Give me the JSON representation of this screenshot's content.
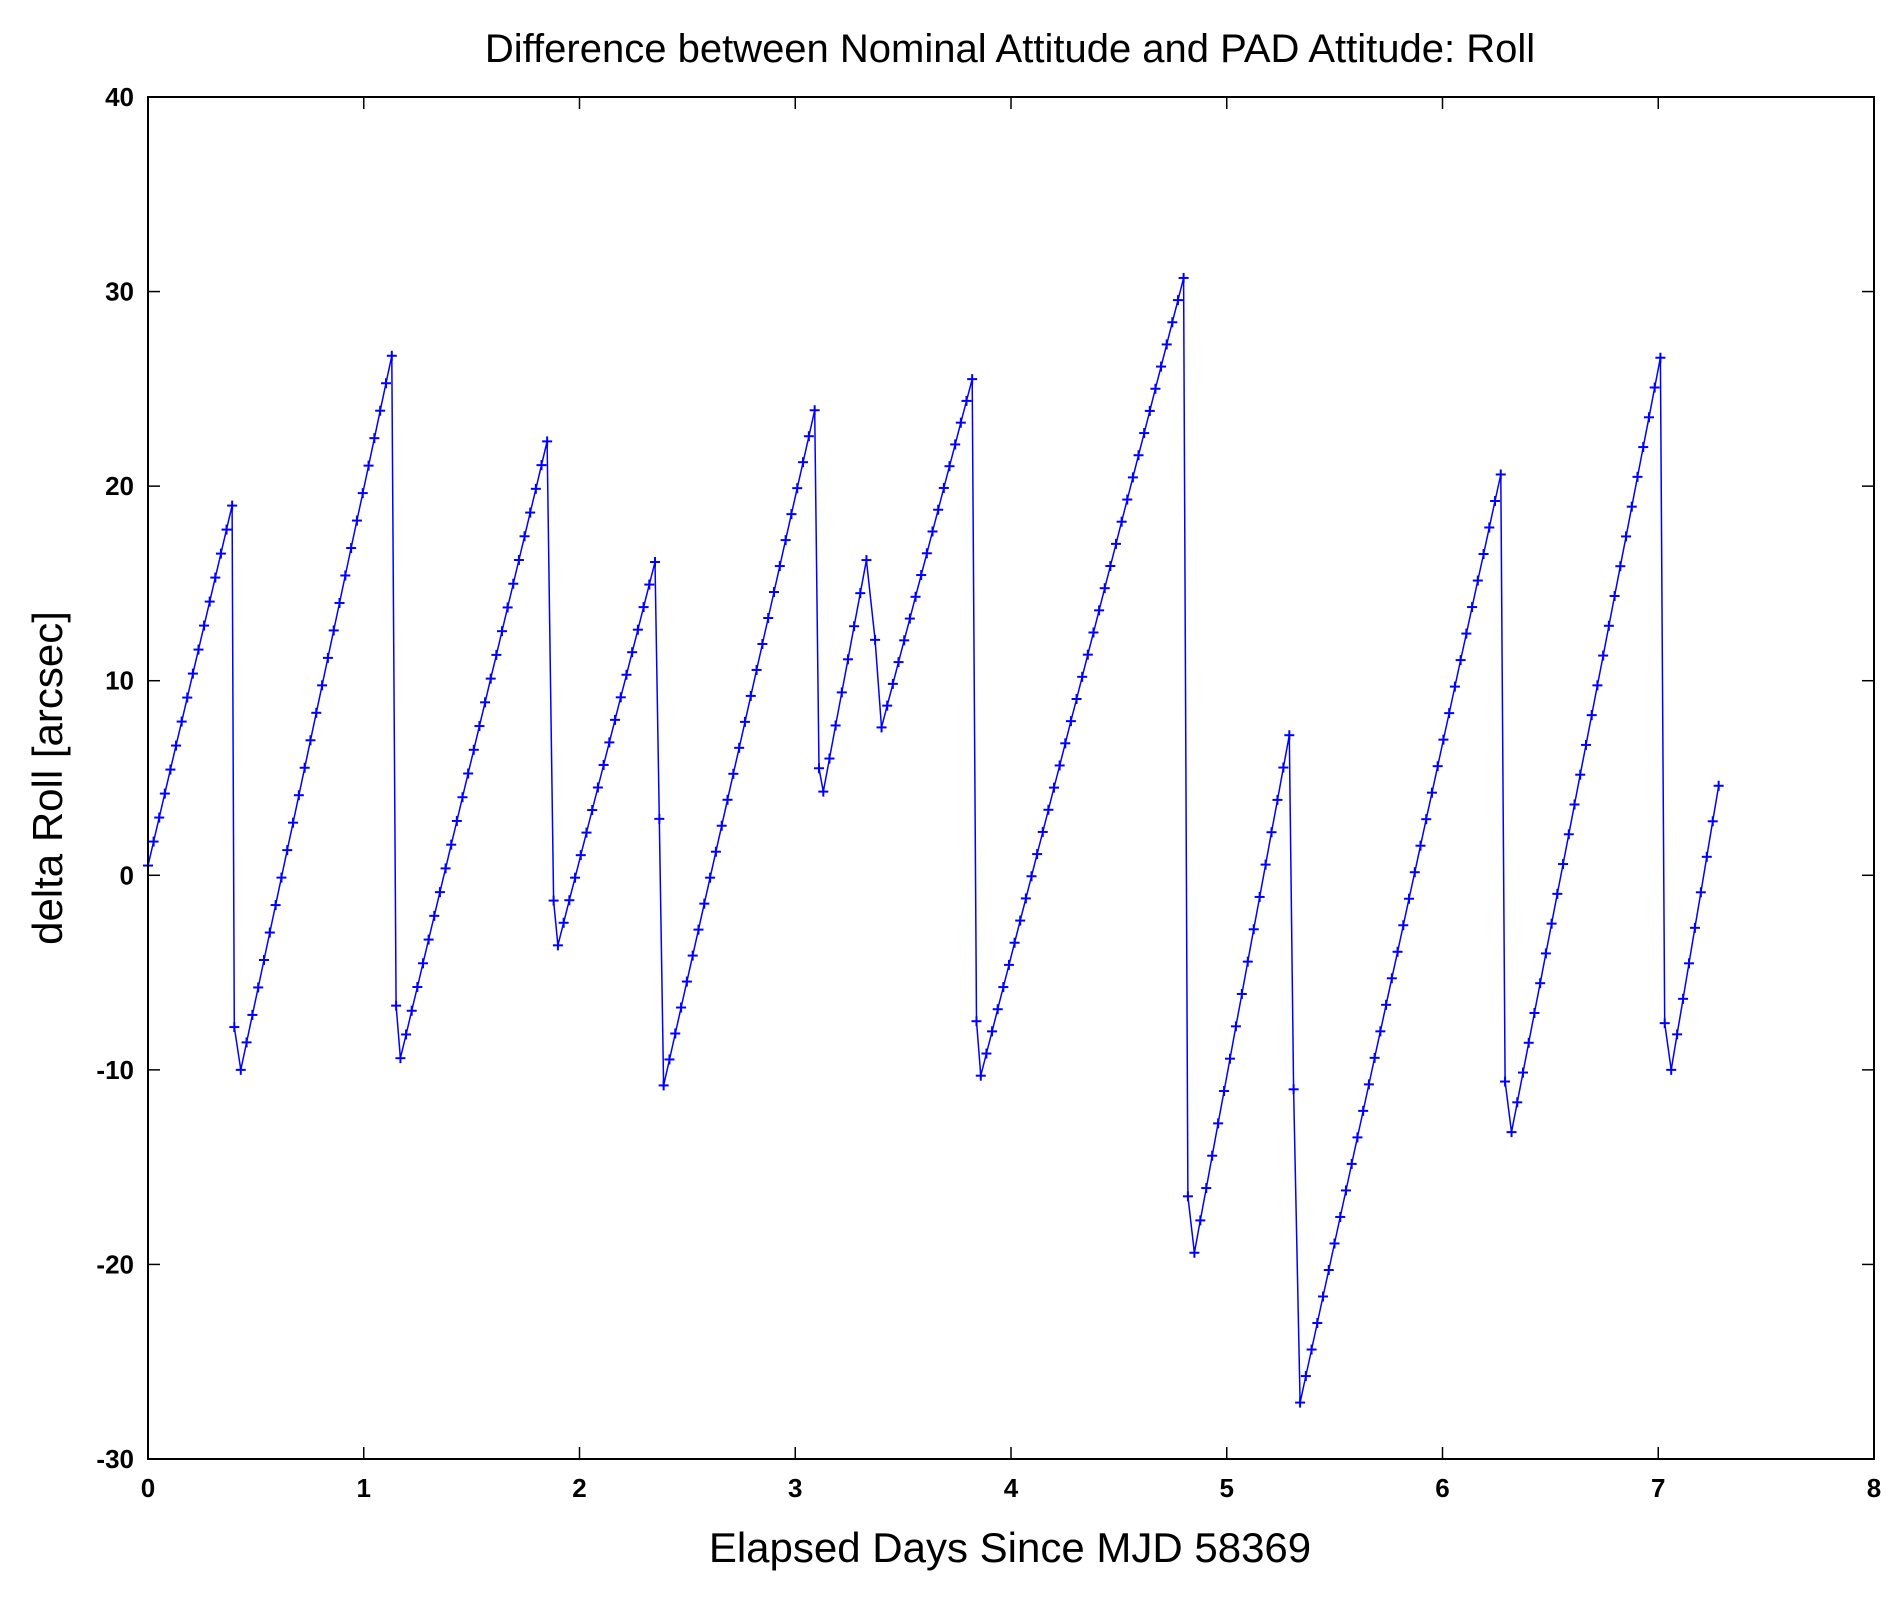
{
  "chart_data": {
    "type": "line",
    "title": "Difference between Nominal Attitude and PAD Attitude: Roll",
    "xlabel": "Elapsed Days Since MJD 58369",
    "ylabel": "delta Roll [arcsec]",
    "xlim": [
      0,
      8
    ],
    "ylim": [
      -30,
      40
    ],
    "xticks": [
      0,
      1,
      2,
      3,
      4,
      5,
      6,
      7,
      8
    ],
    "yticks": [
      -30,
      -20,
      -10,
      0,
      10,
      20,
      30,
      40
    ],
    "grid": false,
    "legend": "none",
    "colors": {
      "series": "#0000ff",
      "axes": "#000000",
      "background": "#ffffff"
    },
    "marker": "plus",
    "series": [
      {
        "anchors": [
          [
            0.0,
            0.5
          ],
          [
            0.39,
            19.0
          ],
          [
            0.4,
            -7.8
          ],
          [
            0.43,
            -10.0
          ],
          [
            1.13,
            26.7
          ],
          [
            1.15,
            -6.7
          ],
          [
            1.17,
            -9.4
          ],
          [
            1.85,
            22.3
          ],
          [
            1.88,
            -1.3
          ],
          [
            1.9,
            -3.6
          ],
          [
            2.35,
            16.1
          ],
          [
            2.37,
            2.9
          ],
          [
            2.39,
            -10.8
          ],
          [
            3.09,
            23.9
          ],
          [
            3.11,
            5.5
          ],
          [
            3.13,
            4.3
          ],
          [
            3.33,
            16.2
          ],
          [
            3.37,
            12.1
          ],
          [
            3.4,
            7.6
          ],
          [
            3.82,
            25.5
          ],
          [
            3.84,
            -7.5
          ],
          [
            3.86,
            -10.3
          ],
          [
            4.8,
            30.7
          ],
          [
            4.82,
            -16.5
          ],
          [
            4.85,
            -19.4
          ],
          [
            5.29,
            7.2
          ],
          [
            5.31,
            -11.0
          ],
          [
            5.34,
            -27.1
          ],
          [
            6.27,
            20.6
          ],
          [
            6.29,
            -10.6
          ],
          [
            6.32,
            -13.2
          ],
          [
            7.01,
            26.6
          ],
          [
            7.03,
            -7.6
          ],
          [
            7.06,
            -10.0
          ],
          [
            7.28,
            4.6
          ]
        ],
        "step": 0.026
      }
    ]
  }
}
